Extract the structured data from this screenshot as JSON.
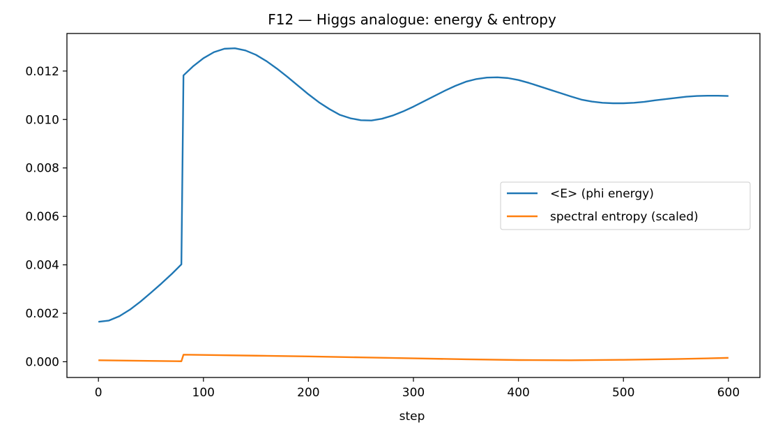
{
  "chart_data": {
    "type": "line",
    "title": "F12 — Higgs analogue: energy & entropy",
    "xlabel": "step",
    "ylabel": "",
    "xlim": [
      -30,
      630
    ],
    "ylim": [
      -0.00065,
      0.01355
    ],
    "xticks": [
      0,
      100,
      200,
      300,
      400,
      500,
      600
    ],
    "xtick_labels": [
      "0",
      "100",
      "200",
      "300",
      "400",
      "500",
      "600"
    ],
    "yticks": [
      0.0,
      0.002,
      0.004,
      0.006,
      0.008,
      0.01,
      0.012
    ],
    "ytick_labels": [
      "0.000",
      "0.002",
      "0.004",
      "0.006",
      "0.008",
      "0.010",
      "0.012"
    ],
    "grid": false,
    "legend_position": "center-right",
    "series": [
      {
        "name": "<E> (phi energy)",
        "color": "#1f77b4",
        "x": [
          0,
          10,
          20,
          30,
          40,
          50,
          60,
          70,
          79,
          81,
          90,
          100,
          110,
          120,
          130,
          140,
          150,
          160,
          170,
          180,
          190,
          200,
          210,
          220,
          230,
          240,
          250,
          260,
          270,
          280,
          290,
          300,
          310,
          320,
          330,
          340,
          350,
          360,
          370,
          380,
          390,
          400,
          410,
          420,
          430,
          440,
          450,
          460,
          470,
          480,
          490,
          500,
          510,
          520,
          530,
          540,
          550,
          560,
          570,
          580,
          590,
          600
        ],
        "y": [
          0.00165,
          0.0017,
          0.00188,
          0.00215,
          0.00248,
          0.00285,
          0.00323,
          0.00363,
          0.00402,
          0.01182,
          0.01219,
          0.01253,
          0.01278,
          0.01292,
          0.01294,
          0.01285,
          0.01267,
          0.01241,
          0.0121,
          0.01176,
          0.0114,
          0.01104,
          0.01071,
          0.01043,
          0.01019,
          0.01005,
          0.00997,
          0.00996,
          0.01003,
          0.01016,
          0.01033,
          0.01053,
          0.01075,
          0.01097,
          0.01119,
          0.01139,
          0.01156,
          0.01167,
          0.01173,
          0.01174,
          0.01171,
          0.01163,
          0.01151,
          0.01137,
          0.01123,
          0.01109,
          0.01095,
          0.01082,
          0.01074,
          0.01069,
          0.01067,
          0.01067,
          0.01069,
          0.01073,
          0.01079,
          0.01084,
          0.01089,
          0.01094,
          0.01097,
          0.01098,
          0.01098,
          0.01097
        ]
      },
      {
        "name": "spectral entropy (scaled)",
        "color": "#ff7f0e",
        "x": [
          0,
          40,
          79,
          81,
          100,
          150,
          200,
          250,
          300,
          350,
          400,
          450,
          500,
          550,
          600
        ],
        "y": [
          6e-05,
          4e-05,
          2e-05,
          0.00029,
          0.00028,
          0.00025,
          0.00022,
          0.00018,
          0.00014,
          0.0001,
          7e-05,
          6e-05,
          8e-05,
          0.00011,
          0.00016
        ]
      }
    ]
  }
}
